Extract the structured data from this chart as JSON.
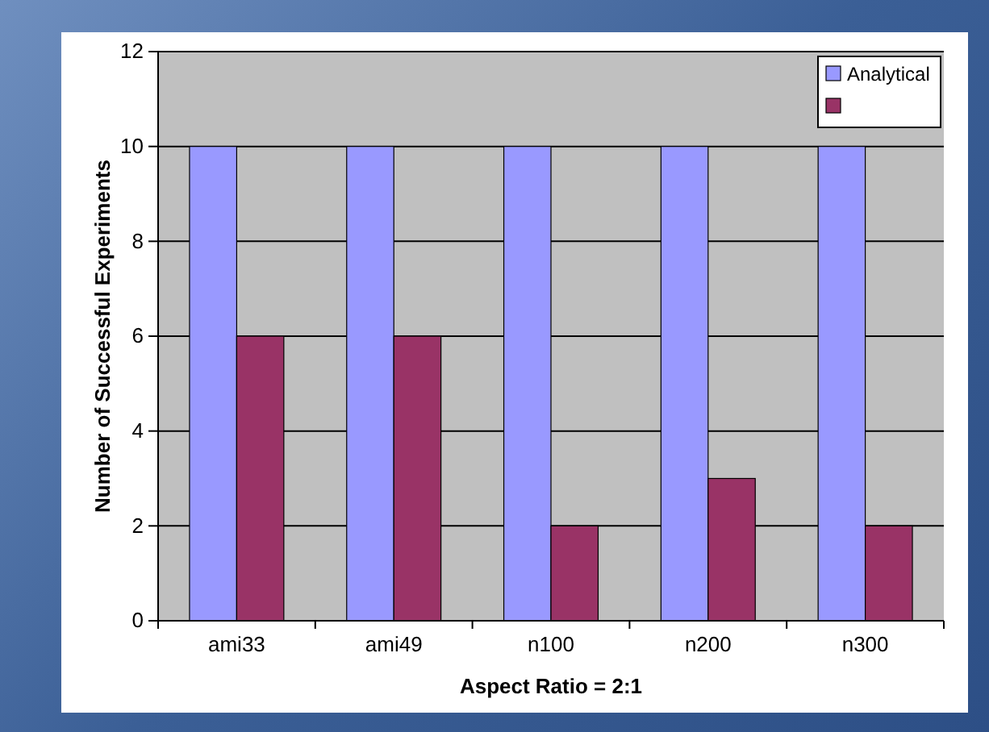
{
  "chart_data": {
    "type": "bar",
    "xlabel": "Aspect Ratio = 2:1",
    "ylabel": "Number of Successful Experiments",
    "categories": [
      "ami33",
      "ami49",
      "n100",
      "n200",
      "n300"
    ],
    "series": [
      {
        "name": "Analytical",
        "color": "#9999ff",
        "values": [
          10,
          10,
          10,
          10,
          10
        ]
      },
      {
        "color": "#993366",
        "values": [
          6,
          6,
          2,
          3,
          2
        ]
      }
    ],
    "ylim": [
      0,
      12
    ],
    "yticks": [
      0,
      2,
      4,
      6,
      8,
      10,
      12
    ],
    "grid": "y",
    "legend": "top right"
  }
}
